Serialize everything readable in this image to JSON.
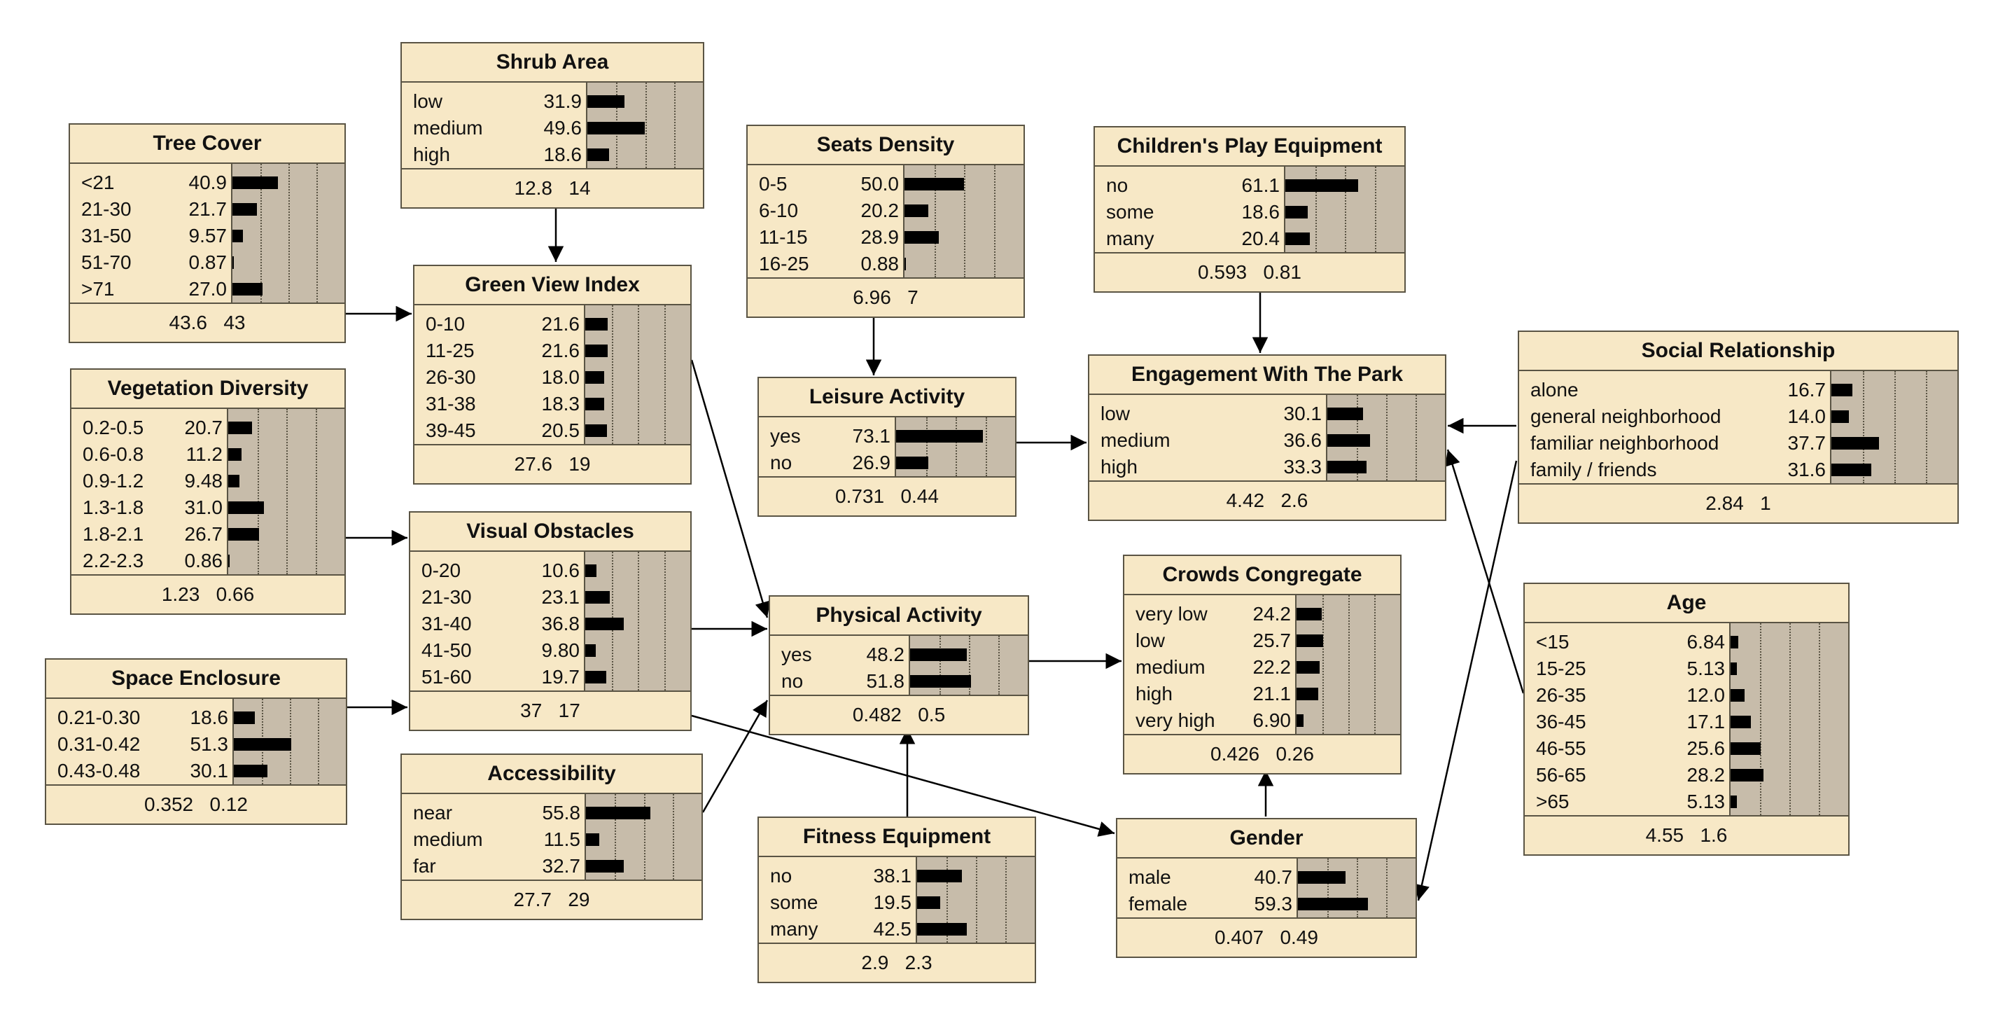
{
  "nodes": [
    {
      "id": "shrub_area",
      "title": "Shrub Area",
      "states": [
        {
          "label": "low",
          "prob": "31.9",
          "value": 31.9
        },
        {
          "label": "medium",
          "prob": "49.6",
          "value": 49.6
        },
        {
          "label": "high",
          "prob": "18.6",
          "value": 18.6
        }
      ],
      "mean": "12.8",
      "sd": "14"
    },
    {
      "id": "tree_cover",
      "title": "Tree Cover",
      "states": [
        {
          "label": "<21",
          "prob": "40.9",
          "value": 40.9
        },
        {
          "label": "21-30",
          "prob": "21.7",
          "value": 21.7
        },
        {
          "label": "31-50",
          "prob": "9.57",
          "value": 9.57
        },
        {
          "label": "51-70",
          "prob": "0.87",
          "value": 0.87
        },
        {
          "label": ">71",
          "prob": "27.0",
          "value": 27.0
        }
      ],
      "mean": "43.6",
      "sd": "43"
    },
    {
      "id": "green_view_index",
      "title": "Green View Index",
      "states": [
        {
          "label": "0-10",
          "prob": "21.6",
          "value": 21.6
        },
        {
          "label": "11-25",
          "prob": "21.6",
          "value": 21.6
        },
        {
          "label": "26-30",
          "prob": "18.0",
          "value": 18.0
        },
        {
          "label": "31-38",
          "prob": "18.3",
          "value": 18.3
        },
        {
          "label": "39-45",
          "prob": "20.5",
          "value": 20.5
        }
      ],
      "mean": "27.6",
      "sd": "19"
    },
    {
      "id": "seats_density",
      "title": "Seats Density",
      "states": [
        {
          "label": "0-5",
          "prob": "50.0",
          "value": 50.0
        },
        {
          "label": "6-10",
          "prob": "20.2",
          "value": 20.2
        },
        {
          "label": "11-15",
          "prob": "28.9",
          "value": 28.9
        },
        {
          "label": "16-25",
          "prob": "0.88",
          "value": 0.88
        }
      ],
      "mean": "6.96",
      "sd": "7"
    },
    {
      "id": "childrens_play_equipment",
      "title": "Children's Play Equipment",
      "states": [
        {
          "label": "no",
          "prob": "61.1",
          "value": 61.1
        },
        {
          "label": "some",
          "prob": "18.6",
          "value": 18.6
        },
        {
          "label": "many",
          "prob": "20.4",
          "value": 20.4
        }
      ],
      "mean": "0.593",
      "sd": "0.81"
    },
    {
      "id": "vegetation_diversity",
      "title": "Vegetation Diversity",
      "states": [
        {
          "label": "0.2-0.5",
          "prob": "20.7",
          "value": 20.7
        },
        {
          "label": "0.6-0.8",
          "prob": "11.2",
          "value": 11.2
        },
        {
          "label": "0.9-1.2",
          "prob": "9.48",
          "value": 9.48
        },
        {
          "label": "1.3-1.8",
          "prob": "31.0",
          "value": 31.0
        },
        {
          "label": "1.8-2.1",
          "prob": "26.7",
          "value": 26.7
        },
        {
          "label": "2.2-2.3",
          "prob": "0.86",
          "value": 0.86
        }
      ],
      "mean": "1.23",
      "sd": "0.66"
    },
    {
      "id": "leisure_activity",
      "title": "Leisure Activity",
      "states": [
        {
          "label": "yes",
          "prob": "73.1",
          "value": 73.1
        },
        {
          "label": "no",
          "prob": "26.9",
          "value": 26.9
        }
      ],
      "mean": "0.731",
      "sd": "0.44"
    },
    {
      "id": "engagement_with_the_park",
      "title": "Engagement With The Park",
      "states": [
        {
          "label": "low",
          "prob": "30.1",
          "value": 30.1
        },
        {
          "label": "medium",
          "prob": "36.6",
          "value": 36.6
        },
        {
          "label": "high",
          "prob": "33.3",
          "value": 33.3
        }
      ],
      "mean": "4.42",
      "sd": "2.6"
    },
    {
      "id": "social_relationship",
      "title": "Social Relationship",
      "states": [
        {
          "label": "alone",
          "prob": "16.7",
          "value": 16.7
        },
        {
          "label": "general neighborhood",
          "prob": "14.0",
          "value": 14.0
        },
        {
          "label": "familiar neighborhood",
          "prob": "37.7",
          "value": 37.7
        },
        {
          "label": "family / friends",
          "prob": "31.6",
          "value": 31.6
        }
      ],
      "mean": "2.84",
      "sd": "1"
    },
    {
      "id": "visual_obstacles",
      "title": "Visual Obstacles",
      "states": [
        {
          "label": "0-20",
          "prob": "10.6",
          "value": 10.6
        },
        {
          "label": "21-30",
          "prob": "23.1",
          "value": 23.1
        },
        {
          "label": "31-40",
          "prob": "36.8",
          "value": 36.8
        },
        {
          "label": "41-50",
          "prob": "9.80",
          "value": 9.8
        },
        {
          "label": "51-60",
          "prob": "19.7",
          "value": 19.7
        }
      ],
      "mean": "37",
      "sd": "17"
    },
    {
      "id": "crowds_congregate",
      "title": "Crowds Congregate",
      "states": [
        {
          "label": "very low",
          "prob": "24.2",
          "value": 24.2
        },
        {
          "label": "low",
          "prob": "25.7",
          "value": 25.7
        },
        {
          "label": "medium",
          "prob": "22.2",
          "value": 22.2
        },
        {
          "label": "high",
          "prob": "21.1",
          "value": 21.1
        },
        {
          "label": "very high",
          "prob": "6.90",
          "value": 6.9
        }
      ],
      "mean": "0.426",
      "sd": "0.26"
    },
    {
      "id": "physical_activity",
      "title": "Physical Activity",
      "states": [
        {
          "label": "yes",
          "prob": "48.2",
          "value": 48.2
        },
        {
          "label": "no",
          "prob": "51.8",
          "value": 51.8
        }
      ],
      "mean": "0.482",
      "sd": "0.5"
    },
    {
      "id": "age",
      "title": "Age",
      "states": [
        {
          "label": "<15",
          "prob": "6.84",
          "value": 6.84
        },
        {
          "label": "15-25",
          "prob": "5.13",
          "value": 5.13
        },
        {
          "label": "26-35",
          "prob": "12.0",
          "value": 12.0
        },
        {
          "label": "36-45",
          "prob": "17.1",
          "value": 17.1
        },
        {
          "label": "46-55",
          "prob": "25.6",
          "value": 25.6
        },
        {
          "label": "56-65",
          "prob": "28.2",
          "value": 28.2
        },
        {
          "label": ">65",
          "prob": "5.13",
          "value": 5.13
        }
      ],
      "mean": "4.55",
      "sd": "1.6"
    },
    {
      "id": "space_enclosure",
      "title": "Space Enclosure",
      "states": [
        {
          "label": "0.21-0.30",
          "prob": "18.6",
          "value": 18.6
        },
        {
          "label": "0.31-0.42",
          "prob": "51.3",
          "value": 51.3
        },
        {
          "label": "0.43-0.48",
          "prob": "30.1",
          "value": 30.1
        }
      ],
      "mean": "0.352",
      "sd": "0.12"
    },
    {
      "id": "accessibility",
      "title": "Accessibility",
      "states": [
        {
          "label": "near",
          "prob": "55.8",
          "value": 55.8
        },
        {
          "label": "medium",
          "prob": "11.5",
          "value": 11.5
        },
        {
          "label": "far",
          "prob": "32.7",
          "value": 32.7
        }
      ],
      "mean": "27.7",
      "sd": "29"
    },
    {
      "id": "fitness_equipment",
      "title": "Fitness Equipment",
      "states": [
        {
          "label": "no",
          "prob": "38.1",
          "value": 38.1
        },
        {
          "label": "some",
          "prob": "19.5",
          "value": 19.5
        },
        {
          "label": "many",
          "prob": "42.5",
          "value": 42.5
        }
      ],
      "mean": "2.9",
      "sd": "2.3"
    },
    {
      "id": "gender",
      "title": "Gender",
      "states": [
        {
          "label": "male",
          "prob": "40.7",
          "value": 40.7
        },
        {
          "label": "female",
          "prob": "59.3",
          "value": 59.3
        }
      ],
      "mean": "0.407",
      "sd": "0.49"
    }
  ],
  "edges": [
    {
      "from": "shrub_area",
      "to": "green_view_index"
    },
    {
      "from": "tree_cover",
      "to": "green_view_index"
    },
    {
      "from": "vegetation_diversity",
      "to": "visual_obstacles"
    },
    {
      "from": "space_enclosure",
      "to": "visual_obstacles"
    },
    {
      "from": "green_view_index",
      "to": "physical_activity"
    },
    {
      "from": "visual_obstacles",
      "to": "physical_activity"
    },
    {
      "from": "accessibility",
      "to": "physical_activity"
    },
    {
      "from": "fitness_equipment",
      "to": "physical_activity"
    },
    {
      "from": "visual_obstacles",
      "to": "gender"
    },
    {
      "from": "seats_density",
      "to": "leisure_activity"
    },
    {
      "from": "leisure_activity",
      "to": "engagement_with_the_park"
    },
    {
      "from": "childrens_play_equipment",
      "to": "engagement_with_the_park"
    },
    {
      "from": "social_relationship",
      "to": "engagement_with_the_park"
    },
    {
      "from": "age",
      "to": "engagement_with_the_park"
    },
    {
      "from": "physical_activity",
      "to": "crowds_congregate"
    },
    {
      "from": "gender",
      "to": "crowds_congregate"
    },
    {
      "from": "social_relationship",
      "to": "gender"
    }
  ],
  "colors": {
    "node_fill": "#f7e8c6",
    "bar_area": "#c7bcaa",
    "border": "#5a5444",
    "bar": "#000000",
    "edge": "#000000"
  }
}
